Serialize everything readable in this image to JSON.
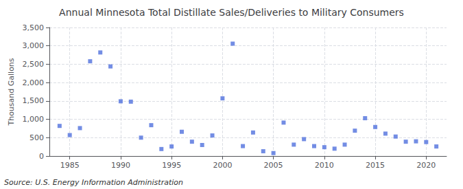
{
  "chart_data": {
    "type": "scatter",
    "title": "Annual Minnesota Total Distillate Sales/Deliveries to Military Consumers",
    "ylabel": "Thousand Gallons",
    "annotations": [
      "Source: U.S. Energy Information Administration"
    ],
    "x": [
      1984,
      1985,
      1986,
      1987,
      1988,
      1989,
      1990,
      1991,
      1992,
      1993,
      1994,
      1995,
      1996,
      1997,
      1998,
      1999,
      2000,
      2001,
      2002,
      2003,
      2004,
      2005,
      2006,
      2007,
      2008,
      2009,
      2010,
      2011,
      2012,
      2013,
      2014,
      2015,
      2016,
      2017,
      2018,
      2019,
      2020,
      2021
    ],
    "values": [
      820,
      570,
      760,
      2580,
      2820,
      2440,
      1490,
      1480,
      500,
      840,
      190,
      260,
      660,
      390,
      300,
      560,
      1570,
      3060,
      270,
      640,
      130,
      80,
      910,
      310,
      460,
      270,
      240,
      200,
      310,
      690,
      1030,
      790,
      610,
      530,
      390,
      400,
      380,
      260
    ],
    "marker": "square",
    "xlim": [
      1983,
      2022
    ],
    "xticks": [
      1985,
      1990,
      1995,
      2000,
      2005,
      2010,
      2015,
      2020
    ],
    "ylim": [
      0,
      3500
    ],
    "yticks": [
      0,
      500,
      {
        "value": 1000,
        "label": "1,000"
      },
      {
        "value": 1500,
        "label": "1,500"
      },
      {
        "value": 2000,
        "label": "2,000"
      },
      {
        "value": 2500,
        "label": "2,500"
      },
      {
        "value": 3000,
        "label": "3,000"
      },
      {
        "value": 3500,
        "label": "3,500"
      }
    ],
    "grid": true
  }
}
